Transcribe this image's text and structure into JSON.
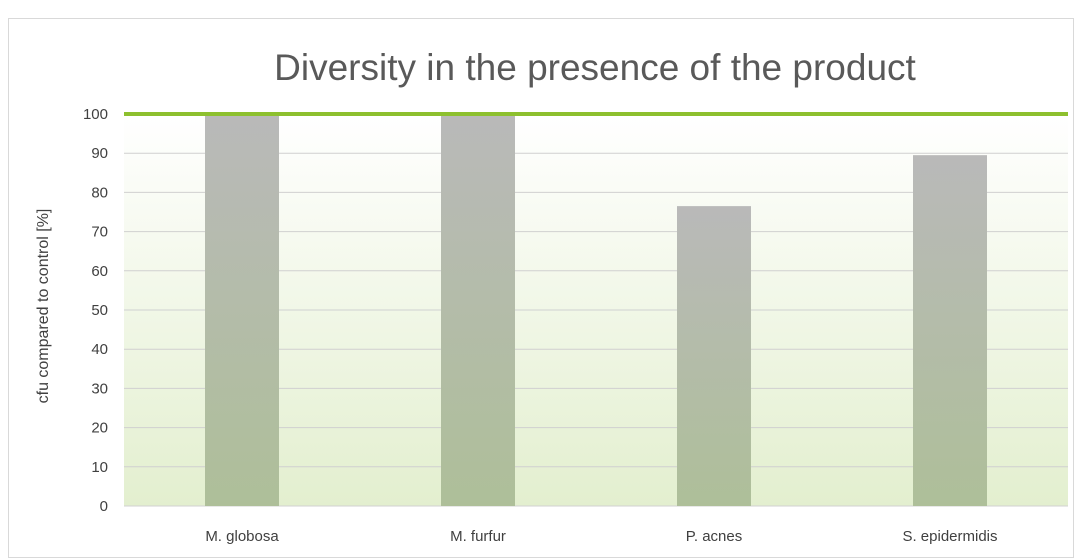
{
  "chart_data": {
    "type": "bar",
    "title": "Diversity in the presence of the product",
    "xlabel": "",
    "ylabel": "cfu compared to control  [%]",
    "categories": [
      "M. globosa",
      "M. furfur",
      "P. acnes",
      "S. epidermidis"
    ],
    "values": [
      100,
      100,
      76.5,
      89.5
    ],
    "ylim": [
      0,
      100
    ],
    "yticks": [
      0,
      10,
      20,
      30,
      40,
      50,
      60,
      70,
      80,
      90,
      100
    ],
    "reference_line": 100,
    "grid": true,
    "legend": "none",
    "colors": {
      "bar_top": "#b9b9b9",
      "bar_bottom": "#aebf99",
      "reference_line": "#8dc02e",
      "gridline": "#d0d0d0",
      "plot_bg_top": "#ffffff",
      "plot_bg_bottom": "#e3efcf"
    }
  }
}
